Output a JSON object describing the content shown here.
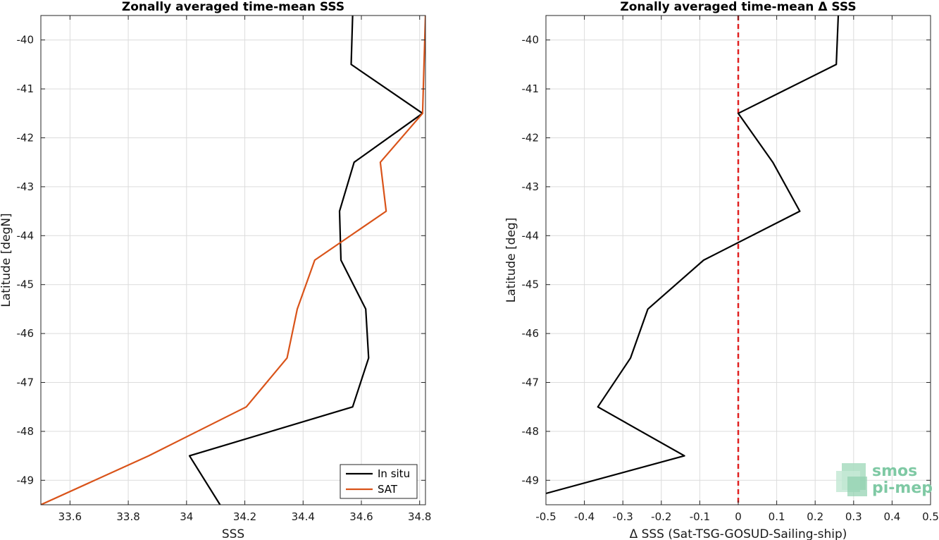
{
  "chart_data": [
    {
      "type": "line",
      "title": "Zonally averaged time-mean SSS",
      "xlabel": "SSS",
      "ylabel": "Latitude [degN]",
      "xlim": [
        33.5,
        34.82
      ],
      "ylim": [
        -49.5,
        -39.5
      ],
      "xticks": [
        33.6,
        33.8,
        34,
        34.2,
        34.4,
        34.6,
        34.8
      ],
      "xtick_labels": [
        "33.6",
        "33.8",
        "34",
        "34.2",
        "34.4",
        "34.6",
        "34.8"
      ],
      "yticks": [
        -40,
        -41,
        -42,
        -43,
        -44,
        -45,
        -46,
        -47,
        -48,
        -49
      ],
      "ytick_labels": [
        "-40",
        "-41",
        "-42",
        "-43",
        "-44",
        "-45",
        "-46",
        "-47",
        "-48",
        "-49"
      ],
      "grid": true,
      "legend_position": "bottom-right",
      "series": [
        {
          "name": "In situ",
          "color": "#000000",
          "x": [
            34.57,
            34.565,
            34.81,
            34.575,
            34.525,
            34.53,
            34.615,
            34.625,
            34.57,
            34.01,
            34.115
          ],
          "y": [
            -39.5,
            -40.5,
            -41.5,
            -42.5,
            -43.5,
            -44.5,
            -45.5,
            -46.5,
            -47.5,
            -48.5,
            -49.5
          ]
        },
        {
          "name": "SAT",
          "color": "#d95319",
          "x": [
            34.82,
            34.815,
            34.81,
            34.665,
            34.685,
            34.44,
            34.38,
            34.345,
            34.205,
            33.87,
            33.5
          ],
          "y": [
            -39.5,
            -40.5,
            -41.5,
            -42.5,
            -43.5,
            -44.5,
            -45.5,
            -46.5,
            -47.5,
            -48.5,
            -49.5
          ]
        }
      ]
    },
    {
      "type": "line",
      "title": "Zonally averaged time-mean Δ SSS",
      "xlabel": "Δ SSS (Sat-TSG-GOSUD-Sailing-ship)",
      "ylabel": "Latitude [deg]",
      "xlim": [
        -0.5,
        0.5
      ],
      "ylim": [
        -49.5,
        -39.5
      ],
      "xticks": [
        -0.5,
        -0.4,
        -0.3,
        -0.2,
        -0.1,
        0,
        0.1,
        0.2,
        0.3,
        0.4,
        0.5
      ],
      "xtick_labels": [
        "-0.5",
        "-0.4",
        "-0.3",
        "-0.2",
        "-0.1",
        "0",
        "0.1",
        "0.2",
        "0.3",
        "0.4",
        "0.5"
      ],
      "yticks": [
        -40,
        -41,
        -42,
        -43,
        -44,
        -45,
        -46,
        -47,
        -48,
        -49
      ],
      "ytick_labels": [
        "-40",
        "-41",
        "-42",
        "-43",
        "-44",
        "-45",
        "-46",
        "-47",
        "-48",
        "-49"
      ],
      "grid": true,
      "reference_line": {
        "x": 0,
        "color": "#e02020",
        "style": "dashed"
      },
      "series": [
        {
          "color": "#000000",
          "x": [
            0.26,
            0.255,
            0.0,
            0.09,
            0.16,
            -0.09,
            -0.235,
            -0.28,
            -0.365,
            -0.14,
            -0.5
          ],
          "y": [
            -39.5,
            -40.5,
            -41.5,
            -42.5,
            -43.5,
            -44.5,
            -45.5,
            -46.5,
            -47.5,
            -48.5,
            -49.27
          ]
        }
      ]
    }
  ],
  "logo": {
    "line1": "smos",
    "line2": "pi-mep"
  }
}
